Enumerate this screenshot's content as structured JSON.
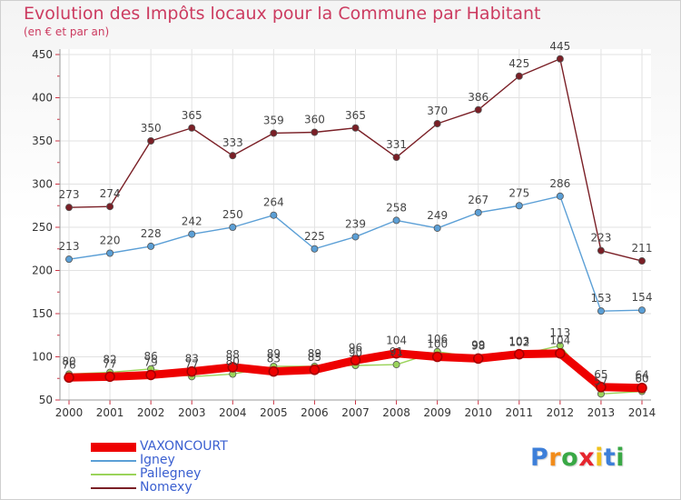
{
  "chart_data": {
    "type": "line",
    "title": "Evolution des Impôts locaux pour la Commune par Habitant",
    "subtitle": "(en € et par an)",
    "xlabel": "",
    "ylabel": "",
    "ylim": [
      50,
      450
    ],
    "yticks": [
      50,
      100,
      150,
      200,
      250,
      300,
      350,
      400,
      450
    ],
    "grid": true,
    "categories": [
      "2000",
      "2001",
      "2002",
      "2003",
      "2004",
      "2005",
      "2006",
      "2007",
      "2008",
      "2009",
      "2010",
      "2011",
      "2012",
      "2013",
      "2014"
    ],
    "series": [
      {
        "name": "Nomexy",
        "color": "#7a1f26",
        "values": [
          273,
          274,
          350,
          365,
          333,
          359,
          360,
          365,
          331,
          370,
          386,
          425,
          445,
          223,
          211
        ]
      },
      {
        "name": "Igney",
        "color": "#5b9fd6",
        "values": [
          213,
          220,
          228,
          242,
          250,
          264,
          225,
          239,
          258,
          249,
          267,
          275,
          286,
          153,
          154
        ]
      },
      {
        "name": "Pallegney",
        "color": "#9ad35a",
        "values": [
          80,
          82,
          86,
          77,
          80,
          89,
          89,
          90,
          91,
          106,
          99,
          102,
          113,
          57,
          60
        ]
      },
      {
        "name": "VAXONCOURT",
        "color": "#ee0000",
        "values": [
          76,
          77,
          79,
          83,
          88,
          83,
          85,
          96,
          104,
          100,
          98,
          103,
          104,
          65,
          64
        ]
      }
    ],
    "legend_order": [
      "VAXONCOURT",
      "Igney",
      "Pallegney",
      "Nomexy"
    ]
  },
  "logo": {
    "letters": [
      "P",
      "r",
      "o",
      "x",
      "i",
      "t",
      "i"
    ],
    "colors": [
      "#3d7fd9",
      "#f28c1a",
      "#39a845",
      "#e6262e",
      "#f0c21b",
      "#3d7fd9",
      "#39a845"
    ]
  }
}
